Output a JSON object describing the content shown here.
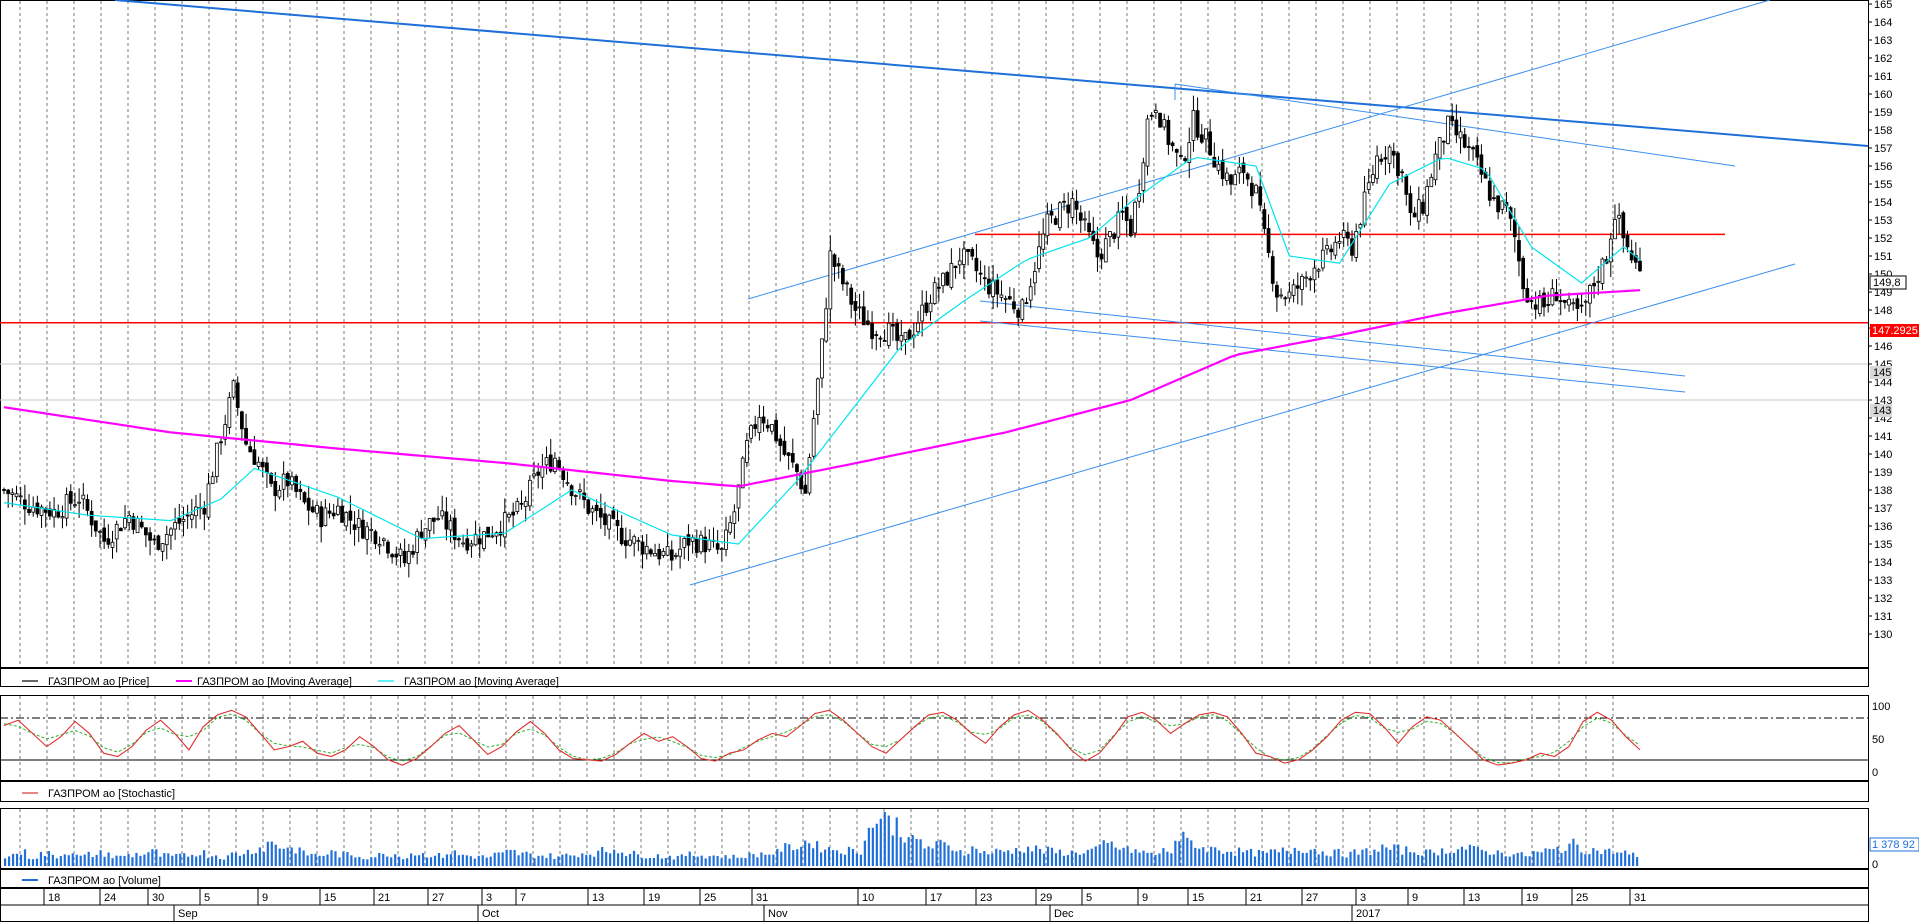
{
  "colors": {
    "candle": "#000000",
    "ma_long": "#ff00ff",
    "ma_short": "#00e5ee",
    "trend_blue": "#1e6fd9",
    "channel_blue": "#3a8ff0",
    "level_red": "#ff0000",
    "stoch": "#e03030",
    "stoch_signal": "#30b030",
    "volume": "#1e6fd9"
  },
  "legend": {
    "price": "ГАЗПРОМ ао [Price]",
    "ma_long": "ГАЗПРОМ ао [Moving Average]",
    "ma_short": "ГАЗПРОМ ао [Moving Average]",
    "stochastic": "ГАЗПРОМ ао [Stochastic]",
    "volume": "ГАЗПРОМ ао [Volume]"
  },
  "badges": {
    "last_price": "149,8",
    "level_red": "147.2925",
    "level_145": "145",
    "level_143": "143",
    "volume_last": "1 378 92"
  },
  "x_axis": {
    "days": [
      "18",
      "24",
      "30",
      "5",
      "9",
      "15",
      "21",
      "27",
      "3",
      "7",
      "13",
      "19",
      "25",
      "31",
      "10",
      "17",
      "23",
      "29",
      "5",
      "9",
      "15",
      "21",
      "27",
      "3",
      "9",
      "13",
      "19",
      "25",
      "31"
    ],
    "months": [
      "Sep",
      "Oct",
      "Nov",
      "Dec",
      "2017"
    ]
  },
  "chart_data": [
    {
      "type": "candlestick",
      "title": "",
      "xlabel": "",
      "ylabel": "",
      "ylim": [
        129,
        165
      ],
      "y_ticks": [
        130,
        131,
        132,
        133,
        134,
        135,
        136,
        137,
        138,
        139,
        140,
        141,
        142,
        143,
        144,
        145,
        146,
        147,
        148,
        149,
        150,
        151,
        152,
        153,
        154,
        155,
        156,
        157,
        158,
        159,
        160,
        161,
        162,
        163,
        164,
        165
      ],
      "close_path": [
        [
          0,
          138.0
        ],
        [
          6,
          137.2
        ],
        [
          12,
          136.8
        ],
        [
          18,
          137.6
        ],
        [
          24,
          135.2
        ],
        [
          30,
          136.6
        ],
        [
          36,
          135.0
        ],
        [
          42,
          136.2
        ],
        [
          48,
          137.2
        ],
        [
          52,
          141.0
        ],
        [
          55,
          143.6
        ],
        [
          58,
          140.6
        ],
        [
          61,
          139.5
        ],
        [
          64,
          138.0
        ],
        [
          68,
          138.5
        ],
        [
          72,
          137.2
        ],
        [
          76,
          136.5
        ],
        [
          80,
          137.0
        ],
        [
          85,
          136.0
        ],
        [
          90,
          135.5
        ],
        [
          96,
          134.0
        ],
        [
          100,
          135.8
        ],
        [
          104,
          136.5
        ],
        [
          110,
          135.2
        ],
        [
          115,
          135.5
        ],
        [
          120,
          136.2
        ],
        [
          124,
          137.0
        ],
        [
          128,
          139.0
        ],
        [
          132,
          139.8
        ],
        [
          136,
          138.2
        ],
        [
          140,
          137.0
        ],
        [
          144,
          136.2
        ],
        [
          148,
          135.5
        ],
        [
          152,
          135.0
        ],
        [
          156,
          134.6
        ],
        [
          160,
          134.2
        ],
        [
          164,
          135.2
        ],
        [
          168,
          135.0
        ],
        [
          172,
          134.5
        ],
        [
          175,
          136.8
        ],
        [
          178,
          140.4
        ],
        [
          181,
          142.3
        ],
        [
          184,
          141.5
        ],
        [
          187,
          140.0
        ],
        [
          190,
          139.0
        ],
        [
          192,
          137.8
        ],
        [
          194,
          142.0
        ],
        [
          196,
          146.0
        ],
        [
          198,
          151.0
        ],
        [
          201,
          149.5
        ],
        [
          204,
          148.0
        ],
        [
          208,
          147.0
        ],
        [
          212,
          146.8
        ],
        [
          215,
          146.0
        ],
        [
          218,
          147.0
        ],
        [
          222,
          148.8
        ],
        [
          226,
          149.8
        ],
        [
          229,
          151.0
        ],
        [
          232,
          150.5
        ],
        [
          235,
          149.5
        ],
        [
          238,
          149.0
        ],
        [
          241,
          148.5
        ],
        [
          244,
          148.0
        ],
        [
          247,
          150.5
        ],
        [
          250,
          152.8
        ],
        [
          253,
          153.5
        ],
        [
          256,
          154.0
        ],
        [
          259,
          152.5
        ],
        [
          262,
          151.0
        ],
        [
          265,
          152.0
        ],
        [
          268,
          153.3
        ],
        [
          270,
          152.5
        ],
        [
          272,
          155.0
        ],
        [
          274,
          158.5
        ],
        [
          276,
          159.5
        ],
        [
          278,
          158.0
        ],
        [
          280,
          157.0
        ],
        [
          282,
          156.0
        ],
        [
          285,
          158.5
        ],
        [
          288,
          157.5
        ],
        [
          291,
          156.0
        ],
        [
          294,
          155.0
        ],
        [
          297,
          155.8
        ],
        [
          300,
          154.5
        ],
        [
          302,
          152.0
        ],
        [
          305,
          149.0
        ],
        [
          308,
          148.8
        ],
        [
          311,
          149.5
        ],
        [
          314,
          150.5
        ],
        [
          317,
          151.0
        ],
        [
          320,
          152.0
        ],
        [
          323,
          151.5
        ],
        [
          326,
          154.0
        ],
        [
          329,
          156.5
        ],
        [
          332,
          157.0
        ],
        [
          335,
          155.5
        ],
        [
          337,
          153.0
        ],
        [
          340,
          153.8
        ],
        [
          343,
          156.5
        ],
        [
          346,
          158.2
        ],
        [
          349,
          157.5
        ],
        [
          352,
          156.5
        ],
        [
          355,
          155.0
        ],
        [
          357,
          154.0
        ],
        [
          360,
          153.5
        ],
        [
          362,
          152.0
        ],
        [
          364,
          149.5
        ],
        [
          366,
          148.5
        ],
        [
          369,
          148.2
        ],
        [
          372,
          149.0
        ],
        [
          375,
          148.0
        ],
        [
          378,
          147.8
        ],
        [
          381,
          149.5
        ],
        [
          384,
          151.0
        ],
        [
          386,
          153.5
        ],
        [
          388,
          152.0
        ],
        [
          390,
          151.0
        ],
        [
          392,
          150.0
        ]
      ],
      "candle_count": 392,
      "moving_average_long": {
        "name": "ГАЗПРОМ ао [Moving Average]",
        "points": [
          [
            0,
            142.6
          ],
          [
            40,
            141.2
          ],
          [
            80,
            140.3
          ],
          [
            120,
            139.5
          ],
          [
            160,
            138.5
          ],
          [
            176,
            138.2
          ],
          [
            200,
            139.3
          ],
          [
            240,
            141.2
          ],
          [
            270,
            143.0
          ],
          [
            295,
            145.5
          ],
          [
            320,
            146.6
          ],
          [
            345,
            147.8
          ],
          [
            370,
            148.8
          ],
          [
            392,
            149.1
          ]
        ]
      },
      "moving_average_short": {
        "name": "ГАЗПРОМ ао [Moving Average]",
        "points": [
          [
            0,
            137.3
          ],
          [
            20,
            136.6
          ],
          [
            40,
            136.3
          ],
          [
            52,
            137.5
          ],
          [
            60,
            139.2
          ],
          [
            80,
            137.6
          ],
          [
            100,
            135.3
          ],
          [
            120,
            135.6
          ],
          [
            136,
            138.0
          ],
          [
            160,
            135.5
          ],
          [
            176,
            135.0
          ],
          [
            190,
            138.5
          ],
          [
            200,
            141.5
          ],
          [
            215,
            146.0
          ],
          [
            230,
            148.5
          ],
          [
            245,
            150.8
          ],
          [
            260,
            152.0
          ],
          [
            270,
            154.0
          ],
          [
            285,
            156.5
          ],
          [
            300,
            156.0
          ],
          [
            308,
            151.0
          ],
          [
            320,
            150.6
          ],
          [
            332,
            155.0
          ],
          [
            345,
            156.5
          ],
          [
            355,
            155.8
          ],
          [
            366,
            151.5
          ],
          [
            378,
            149.5
          ],
          [
            388,
            151.5
          ],
          [
            392,
            150.8
          ]
        ]
      },
      "horizontal_levels": [
        152.2,
        147.2925
      ]
    },
    {
      "type": "line",
      "title": "",
      "ylim": [
        0,
        100
      ],
      "y_ticks": [
        0,
        50,
        100
      ],
      "reference_levels": [
        80,
        20
      ],
      "series": [
        {
          "name": "ГАЗПРОМ ао [Stochastic]",
          "values": [
            72,
            80,
            60,
            40,
            55,
            78,
            60,
            30,
            25,
            40,
            65,
            80,
            60,
            35,
            70,
            88,
            95,
            85,
            60,
            35,
            40,
            48,
            30,
            25,
            35,
            55,
            40,
            20,
            12,
            22,
            40,
            60,
            72,
            50,
            28,
            40,
            62,
            78,
            60,
            35,
            22,
            20,
            18,
            28,
            45,
            60,
            48,
            55,
            40,
            22,
            18,
            30,
            35,
            50,
            60,
            55,
            72,
            90,
            95,
            80,
            60,
            40,
            30,
            50,
            70,
            88,
            92,
            80,
            60,
            45,
            70,
            88,
            95,
            80,
            60,
            35,
            18,
            30,
            55,
            85,
            92,
            80,
            60,
            75,
            88,
            92,
            85,
            60,
            30,
            25,
            15,
            20,
            35,
            55,
            80,
            92,
            90,
            70,
            45,
            70,
            85,
            80,
            60,
            40,
            20,
            12,
            15,
            20,
            30,
            25,
            40,
            78,
            92,
            80,
            55,
            35
          ]
        }
      ]
    },
    {
      "type": "bar",
      "title": "",
      "series": [
        {
          "name": "ГАЗПРОМ ао [Volume]",
          "values": [
            18,
            22,
            15,
            20,
            17,
            24,
            16,
            19,
            21,
            15,
            18,
            20,
            23,
            17,
            16,
            19,
            22,
            18,
            15,
            20,
            24,
            30,
            38,
            32,
            28,
            20,
            18,
            22,
            19,
            17,
            15,
            18,
            20,
            16,
            21,
            19,
            17,
            22,
            18,
            16,
            15,
            19,
            23,
            20,
            18,
            17,
            16,
            18,
            21,
            22,
            25,
            28,
            20,
            18,
            17,
            16,
            15,
            19,
            18,
            17,
            16,
            15,
            18,
            20,
            22,
            30,
            34,
            40,
            32,
            28,
            26,
            24,
            60,
            85,
            70,
            55,
            40,
            32,
            35,
            30,
            25,
            28,
            22,
            24,
            26,
            30,
            28,
            25,
            23,
            22,
            24,
            28,
            35,
            30,
            26,
            22,
            20,
            25,
            45,
            40,
            30,
            28,
            26,
            24,
            22,
            21,
            23,
            25,
            30,
            28,
            24,
            22,
            20,
            22,
            25,
            30,
            28,
            26,
            24,
            22,
            25,
            28,
            30,
            26,
            24,
            22,
            20,
            18,
            22,
            25,
            30,
            35,
            28,
            26,
            24,
            22,
            18
          ]
        }
      ],
      "last_value_label": "1 378 92"
    }
  ]
}
